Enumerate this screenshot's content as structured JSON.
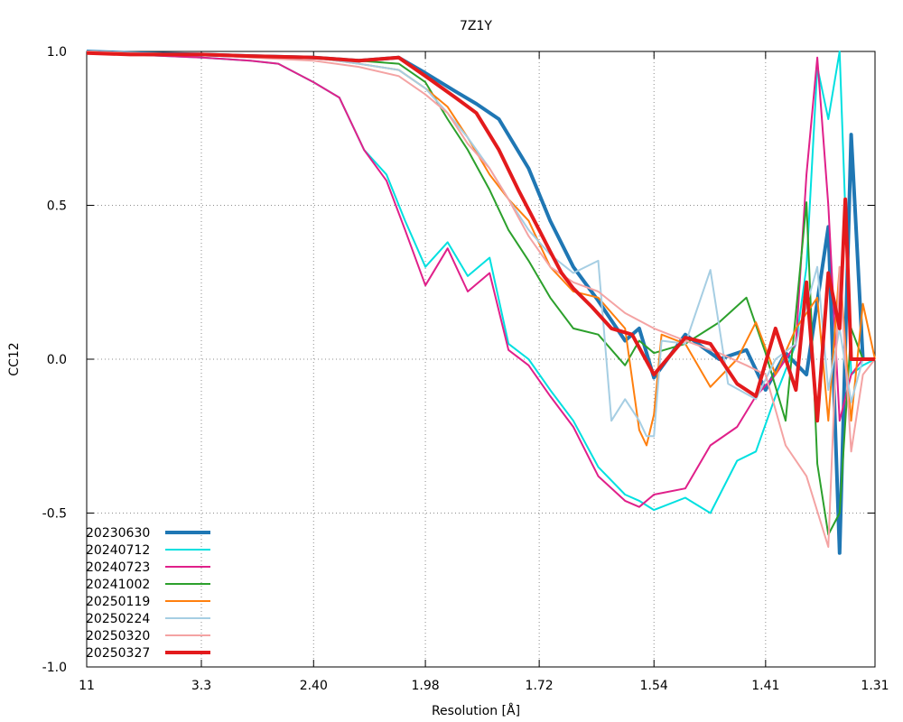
{
  "chart_data": {
    "type": "line",
    "title": "7Z1Y",
    "xlabel": "Resolution [Å]",
    "ylabel": "CC12",
    "x_scale": "reciprocal-squared",
    "xlim": [
      11,
      1.31
    ],
    "ylim": [
      -1.0,
      1.0
    ],
    "x_ticks": [
      {
        "label": "11",
        "value": 11
      },
      {
        "label": "3.3",
        "value": 3.3
      },
      {
        "label": "2.40",
        "value": 2.4
      },
      {
        "label": "1.98",
        "value": 1.98
      },
      {
        "label": "1.72",
        "value": 1.72
      },
      {
        "label": "1.54",
        "value": 1.54
      },
      {
        "label": "1.41",
        "value": 1.41
      },
      {
        "label": "1.31",
        "value": 1.31
      }
    ],
    "y_ticks": [
      {
        "label": "1.0",
        "value": 1.0
      },
      {
        "label": "0.5",
        "value": 0.5
      },
      {
        "label": "0.0",
        "value": 0.0
      },
      {
        "label": "-0.5",
        "value": -0.5
      },
      {
        "label": "-1.0",
        "value": -1.0
      }
    ],
    "grid": true,
    "legend": "bottom-left",
    "series": [
      {
        "name": "20230630",
        "color": "#1f77b4",
        "width": 4,
        "x": [
          11,
          5,
          3.3,
          2.8,
          2.4,
          2.2,
          2.06,
          1.98,
          1.9,
          1.85,
          1.8,
          1.74,
          1.7,
          1.66,
          1.62,
          1.58,
          1.56,
          1.54,
          1.5,
          1.46,
          1.43,
          1.41,
          1.39,
          1.37,
          1.35,
          1.34,
          1.33,
          1.32,
          1.31
        ],
        "y": [
          1.0,
          0.995,
          0.99,
          0.985,
          0.98,
          0.97,
          0.98,
          0.93,
          0.87,
          0.83,
          0.78,
          0.62,
          0.45,
          0.3,
          0.19,
          0.06,
          0.1,
          -0.06,
          0.08,
          0.0,
          0.03,
          -0.1,
          0.02,
          -0.05,
          0.43,
          -0.63,
          0.73,
          0.0,
          0.0
        ]
      },
      {
        "name": "20240712",
        "color": "#00e0e0",
        "width": 2,
        "x": [
          11,
          5,
          3.3,
          2.8,
          2.6,
          2.4,
          2.28,
          2.18,
          2.1,
          2.04,
          1.98,
          1.92,
          1.87,
          1.82,
          1.78,
          1.74,
          1.7,
          1.66,
          1.62,
          1.58,
          1.56,
          1.54,
          1.5,
          1.47,
          1.44,
          1.42,
          1.4,
          1.38,
          1.37,
          1.36,
          1.35,
          1.34,
          1.33,
          1.32,
          1.31
        ],
        "y": [
          1.0,
          0.99,
          0.98,
          0.97,
          0.96,
          0.9,
          0.85,
          0.68,
          0.6,
          0.45,
          0.3,
          0.38,
          0.27,
          0.33,
          0.05,
          0.0,
          -0.1,
          -0.2,
          -0.35,
          -0.44,
          -0.46,
          -0.49,
          -0.45,
          -0.5,
          -0.33,
          -0.3,
          -0.12,
          0.05,
          0.3,
          0.95,
          0.78,
          1.0,
          -0.05,
          -0.02,
          0.0
        ]
      },
      {
        "name": "20240723",
        "color": "#e0208a",
        "width": 2,
        "x": [
          11,
          5,
          3.3,
          2.8,
          2.6,
          2.4,
          2.28,
          2.18,
          2.1,
          2.04,
          1.98,
          1.92,
          1.87,
          1.82,
          1.78,
          1.74,
          1.7,
          1.66,
          1.62,
          1.58,
          1.56,
          1.54,
          1.5,
          1.47,
          1.44,
          1.42,
          1.4,
          1.38,
          1.37,
          1.36,
          1.35,
          1.34,
          1.33,
          1.32,
          1.31
        ],
        "y": [
          1.0,
          0.99,
          0.98,
          0.97,
          0.96,
          0.9,
          0.85,
          0.68,
          0.58,
          0.42,
          0.24,
          0.36,
          0.22,
          0.28,
          0.03,
          -0.02,
          -0.12,
          -0.22,
          -0.38,
          -0.46,
          -0.48,
          -0.44,
          -0.42,
          -0.28,
          -0.22,
          -0.12,
          -0.05,
          0.05,
          0.6,
          0.98,
          0.5,
          -0.2,
          -0.05,
          0.0,
          0.0
        ]
      },
      {
        "name": "20241002",
        "color": "#2ca02c",
        "width": 2,
        "x": [
          11,
          5,
          3.3,
          2.8,
          2.4,
          2.2,
          2.06,
          1.98,
          1.92,
          1.87,
          1.82,
          1.78,
          1.74,
          1.7,
          1.66,
          1.62,
          1.58,
          1.56,
          1.54,
          1.5,
          1.46,
          1.43,
          1.41,
          1.39,
          1.37,
          1.36,
          1.35,
          1.34,
          1.33,
          1.32,
          1.31
        ],
        "y": [
          1.0,
          0.995,
          0.99,
          0.985,
          0.98,
          0.97,
          0.96,
          0.9,
          0.78,
          0.68,
          0.55,
          0.42,
          0.32,
          0.2,
          0.1,
          0.08,
          -0.02,
          0.06,
          0.02,
          0.05,
          0.12,
          0.2,
          0.02,
          -0.2,
          0.51,
          -0.34,
          -0.57,
          -0.5,
          0.1,
          0.0,
          0.0
        ]
      },
      {
        "name": "20250119",
        "color": "#ff7f0e",
        "width": 2,
        "x": [
          11,
          5,
          3.3,
          2.8,
          2.4,
          2.2,
          2.06,
          1.98,
          1.92,
          1.87,
          1.82,
          1.78,
          1.74,
          1.7,
          1.66,
          1.62,
          1.58,
          1.56,
          1.55,
          1.54,
          1.53,
          1.5,
          1.47,
          1.44,
          1.42,
          1.4,
          1.38,
          1.36,
          1.35,
          1.34,
          1.33,
          1.32,
          1.31
        ],
        "y": [
          1.0,
          0.995,
          0.99,
          0.985,
          0.98,
          0.96,
          0.94,
          0.88,
          0.82,
          0.72,
          0.6,
          0.52,
          0.45,
          0.3,
          0.22,
          0.2,
          0.1,
          -0.23,
          -0.28,
          -0.18,
          0.08,
          0.05,
          -0.09,
          0.0,
          0.12,
          -0.05,
          0.1,
          0.2,
          -0.2,
          0.3,
          -0.2,
          0.18,
          0.0
        ]
      },
      {
        "name": "20250224",
        "color": "#a6cee3",
        "width": 2,
        "x": [
          11,
          5,
          3.3,
          2.8,
          2.4,
          2.2,
          2.06,
          1.98,
          1.92,
          1.87,
          1.82,
          1.78,
          1.74,
          1.7,
          1.66,
          1.62,
          1.6,
          1.58,
          1.56,
          1.55,
          1.54,
          1.53,
          1.5,
          1.47,
          1.45,
          1.42,
          1.4,
          1.38,
          1.36,
          1.35,
          1.34,
          1.33,
          1.32,
          1.31
        ],
        "y": [
          1.0,
          0.995,
          0.99,
          0.985,
          0.98,
          0.96,
          0.94,
          0.88,
          0.8,
          0.72,
          0.62,
          0.52,
          0.42,
          0.34,
          0.28,
          0.32,
          -0.2,
          -0.13,
          -0.2,
          -0.25,
          -0.25,
          0.06,
          0.05,
          0.29,
          -0.08,
          -0.13,
          0.0,
          0.05,
          0.3,
          -0.1,
          0.1,
          -0.14,
          0.0,
          0.0
        ]
      },
      {
        "name": "20250320",
        "color": "#f4a3a3",
        "width": 2,
        "x": [
          11,
          5,
          3.3,
          2.8,
          2.4,
          2.2,
          2.06,
          1.98,
          1.92,
          1.87,
          1.82,
          1.78,
          1.74,
          1.7,
          1.66,
          1.62,
          1.58,
          1.54,
          1.5,
          1.46,
          1.43,
          1.41,
          1.39,
          1.37,
          1.35,
          1.34,
          1.33,
          1.32,
          1.31
        ],
        "y": [
          1.0,
          0.995,
          0.99,
          0.98,
          0.97,
          0.95,
          0.92,
          0.86,
          0.8,
          0.7,
          0.62,
          0.52,
          0.4,
          0.3,
          0.25,
          0.22,
          0.15,
          0.1,
          0.06,
          0.02,
          -0.02,
          -0.05,
          -0.28,
          -0.38,
          -0.61,
          0.3,
          -0.3,
          -0.05,
          0.0
        ]
      },
      {
        "name": "20250327",
        "color": "#e31a1c",
        "width": 4,
        "x": [
          11,
          5,
          3.3,
          2.8,
          2.4,
          2.2,
          2.06,
          1.98,
          1.9,
          1.85,
          1.8,
          1.76,
          1.72,
          1.7,
          1.68,
          1.66,
          1.63,
          1.6,
          1.57,
          1.54,
          1.5,
          1.47,
          1.44,
          1.42,
          1.4,
          1.38,
          1.37,
          1.36,
          1.35,
          1.34,
          1.335,
          1.33,
          1.32,
          1.31
        ],
        "y": [
          0.995,
          0.99,
          0.99,
          0.985,
          0.98,
          0.97,
          0.98,
          0.92,
          0.85,
          0.8,
          0.68,
          0.55,
          0.42,
          0.35,
          0.28,
          0.23,
          0.17,
          0.1,
          0.08,
          -0.05,
          0.07,
          0.05,
          -0.08,
          -0.12,
          0.1,
          -0.1,
          0.25,
          -0.2,
          0.28,
          0.1,
          0.52,
          0.0,
          0.0,
          0.0
        ]
      }
    ]
  }
}
